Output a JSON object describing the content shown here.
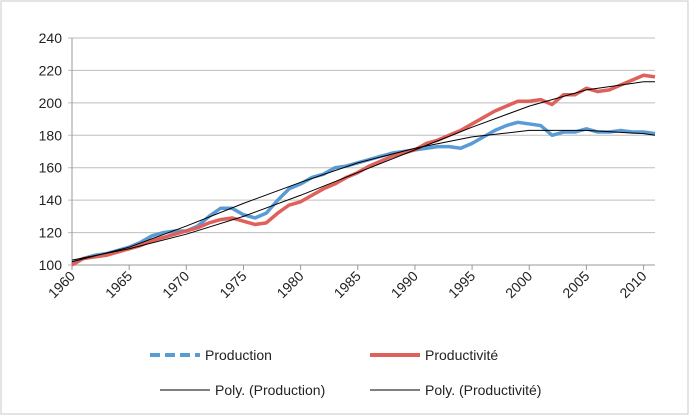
{
  "chart_data": {
    "type": "line",
    "x": [
      1960,
      1961,
      1962,
      1963,
      1964,
      1965,
      1966,
      1967,
      1968,
      1969,
      1970,
      1971,
      1972,
      1973,
      1974,
      1975,
      1976,
      1977,
      1978,
      1979,
      1980,
      1981,
      1982,
      1983,
      1984,
      1985,
      1986,
      1987,
      1988,
      1989,
      1990,
      1991,
      1992,
      1993,
      1994,
      1995,
      1996,
      1997,
      1998,
      1999,
      2000,
      2001,
      2002,
      2003,
      2004,
      2005,
      2006,
      2007,
      2008,
      2009,
      2010,
      2011
    ],
    "xlim": [
      1960,
      2011
    ],
    "xticks": [
      1960,
      1965,
      1970,
      1975,
      1980,
      1985,
      1990,
      1995,
      2000,
      2005,
      2010
    ],
    "ylim": [
      100,
      240
    ],
    "yticks": [
      100,
      120,
      140,
      160,
      180,
      200,
      220,
      240
    ],
    "grid": true,
    "legend": "bottom",
    "series": [
      {
        "name": "Production",
        "color": "#5b9bd5",
        "dashed": true,
        "values": [
          101,
          104,
          106,
          107,
          109,
          111,
          114,
          118,
          120,
          121,
          121,
          124,
          130,
          135,
          135,
          131,
          129,
          132,
          140,
          147,
          150,
          154,
          156,
          160,
          161,
          163,
          165,
          167,
          169,
          170,
          171,
          172,
          173,
          173,
          172,
          175,
          179,
          183,
          186,
          188,
          187,
          186,
          180,
          182,
          182,
          184,
          182,
          182,
          183,
          182,
          182,
          181
        ]
      },
      {
        "name": "Productivité",
        "color": "#e0605a",
        "values": [
          100,
          104,
          105,
          106,
          108,
          110,
          112,
          115,
          117,
          119,
          121,
          123,
          126,
          128,
          129,
          127,
          125,
          126,
          132,
          137,
          139,
          143,
          147,
          150,
          154,
          157,
          161,
          164,
          167,
          169,
          171,
          175,
          177,
          180,
          183,
          187,
          191,
          195,
          198,
          201,
          201,
          202,
          199,
          205,
          205,
          209,
          207,
          208,
          211,
          214,
          217,
          216
        ]
      },
      {
        "name": "Poly. (Production)",
        "color": "#000000",
        "x": [
          1960,
          1965,
          1970,
          1975,
          1980,
          1985,
          1990,
          1995,
          2000,
          2005,
          2010,
          2011
        ],
        "values": [
          102,
          111,
          124,
          138,
          151,
          163,
          172,
          179,
          183,
          183,
          181,
          180
        ]
      },
      {
        "name": "Poly. (Productivité)",
        "color": "#000000",
        "x": [
          1960,
          1965,
          1970,
          1975,
          1980,
          1985,
          1990,
          1995,
          2000,
          2005,
          2010,
          2011
        ],
        "values": [
          103,
          110,
          119,
          130,
          143,
          157,
          171,
          185,
          198,
          208,
          213,
          213
        ]
      }
    ]
  }
}
